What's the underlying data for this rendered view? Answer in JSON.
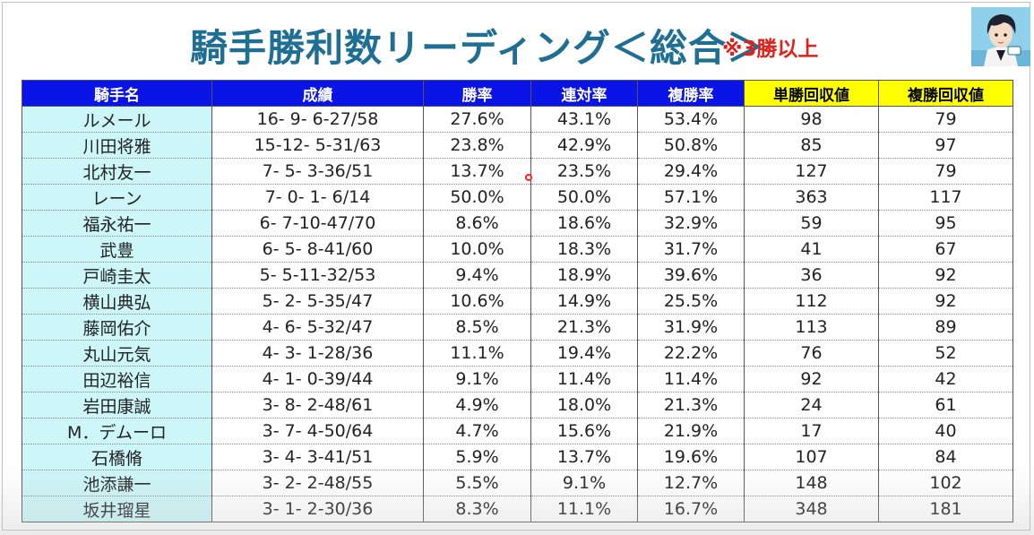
{
  "header": {
    "title": "騎手勝利数リーディング＜総合＞",
    "subtitle": "※3勝以上",
    "avatar_icon": "character-avatar-icon"
  },
  "table": {
    "columns": [
      {
        "label": "騎手名",
        "color": "blue"
      },
      {
        "label": "成績",
        "color": "blue"
      },
      {
        "label": "勝率",
        "color": "blue"
      },
      {
        "label": "連対率",
        "color": "blue"
      },
      {
        "label": "複勝率",
        "color": "blue"
      },
      {
        "label": "単勝回収値",
        "color": "yellow"
      },
      {
        "label": "複勝回収値",
        "color": "yellow"
      }
    ],
    "rows": [
      [
        "ルメール",
        "16- 9- 6-27/58",
        "27.6%",
        "43.1%",
        "53.4%",
        "98",
        "79"
      ],
      [
        "川田将雅",
        "15-12- 5-31/63",
        "23.8%",
        "42.9%",
        "50.8%",
        "85",
        "97"
      ],
      [
        "北村友一",
        "7- 5- 3-36/51",
        "13.7%",
        "23.5%",
        "29.4%",
        "127",
        "79"
      ],
      [
        "レーン",
        "7- 0- 1- 6/14",
        "50.0%",
        "50.0%",
        "57.1%",
        "363",
        "117"
      ],
      [
        "福永祐一",
        "6- 7-10-47/70",
        "8.6%",
        "18.6%",
        "32.9%",
        "59",
        "95"
      ],
      [
        "武豊",
        "6- 5- 8-41/60",
        "10.0%",
        "18.3%",
        "31.7%",
        "41",
        "67"
      ],
      [
        "戸崎圭太",
        "5- 5-11-32/53",
        "9.4%",
        "18.9%",
        "39.6%",
        "36",
        "92"
      ],
      [
        "横山典弘",
        "5- 2- 5-35/47",
        "10.6%",
        "14.9%",
        "25.5%",
        "112",
        "92"
      ],
      [
        "藤岡佑介",
        "4- 6- 5-32/47",
        "8.5%",
        "21.3%",
        "31.9%",
        "113",
        "89"
      ],
      [
        "丸山元気",
        "4- 3- 1-28/36",
        "11.1%",
        "19.4%",
        "22.2%",
        "76",
        "52"
      ],
      [
        "田辺裕信",
        "4- 1- 0-39/44",
        "9.1%",
        "11.4%",
        "11.4%",
        "92",
        "42"
      ],
      [
        "岩田康誠",
        "3- 8- 2-48/61",
        "4.9%",
        "18.0%",
        "21.3%",
        "24",
        "61"
      ],
      [
        "M．デムーロ",
        "3- 7- 4-50/64",
        "4.7%",
        "15.6%",
        "21.9%",
        "17",
        "40"
      ],
      [
        "石橋脩",
        "3- 4- 3-41/51",
        "5.9%",
        "13.7%",
        "19.6%",
        "107",
        "84"
      ],
      [
        "池添謙一",
        "3- 2- 2-48/55",
        "5.5%",
        "9.1%",
        "12.7%",
        "148",
        "102"
      ],
      [
        "坂井瑠星",
        "3- 1- 2-30/36",
        "8.3%",
        "11.1%",
        "16.7%",
        "348",
        "181"
      ]
    ]
  },
  "colors": {
    "title": "#1e6f93",
    "subtitle": "#e0201a",
    "header_blue": "#0a14e6",
    "header_yellow": "#ffff00",
    "name_cell": "#ccf6f8"
  }
}
